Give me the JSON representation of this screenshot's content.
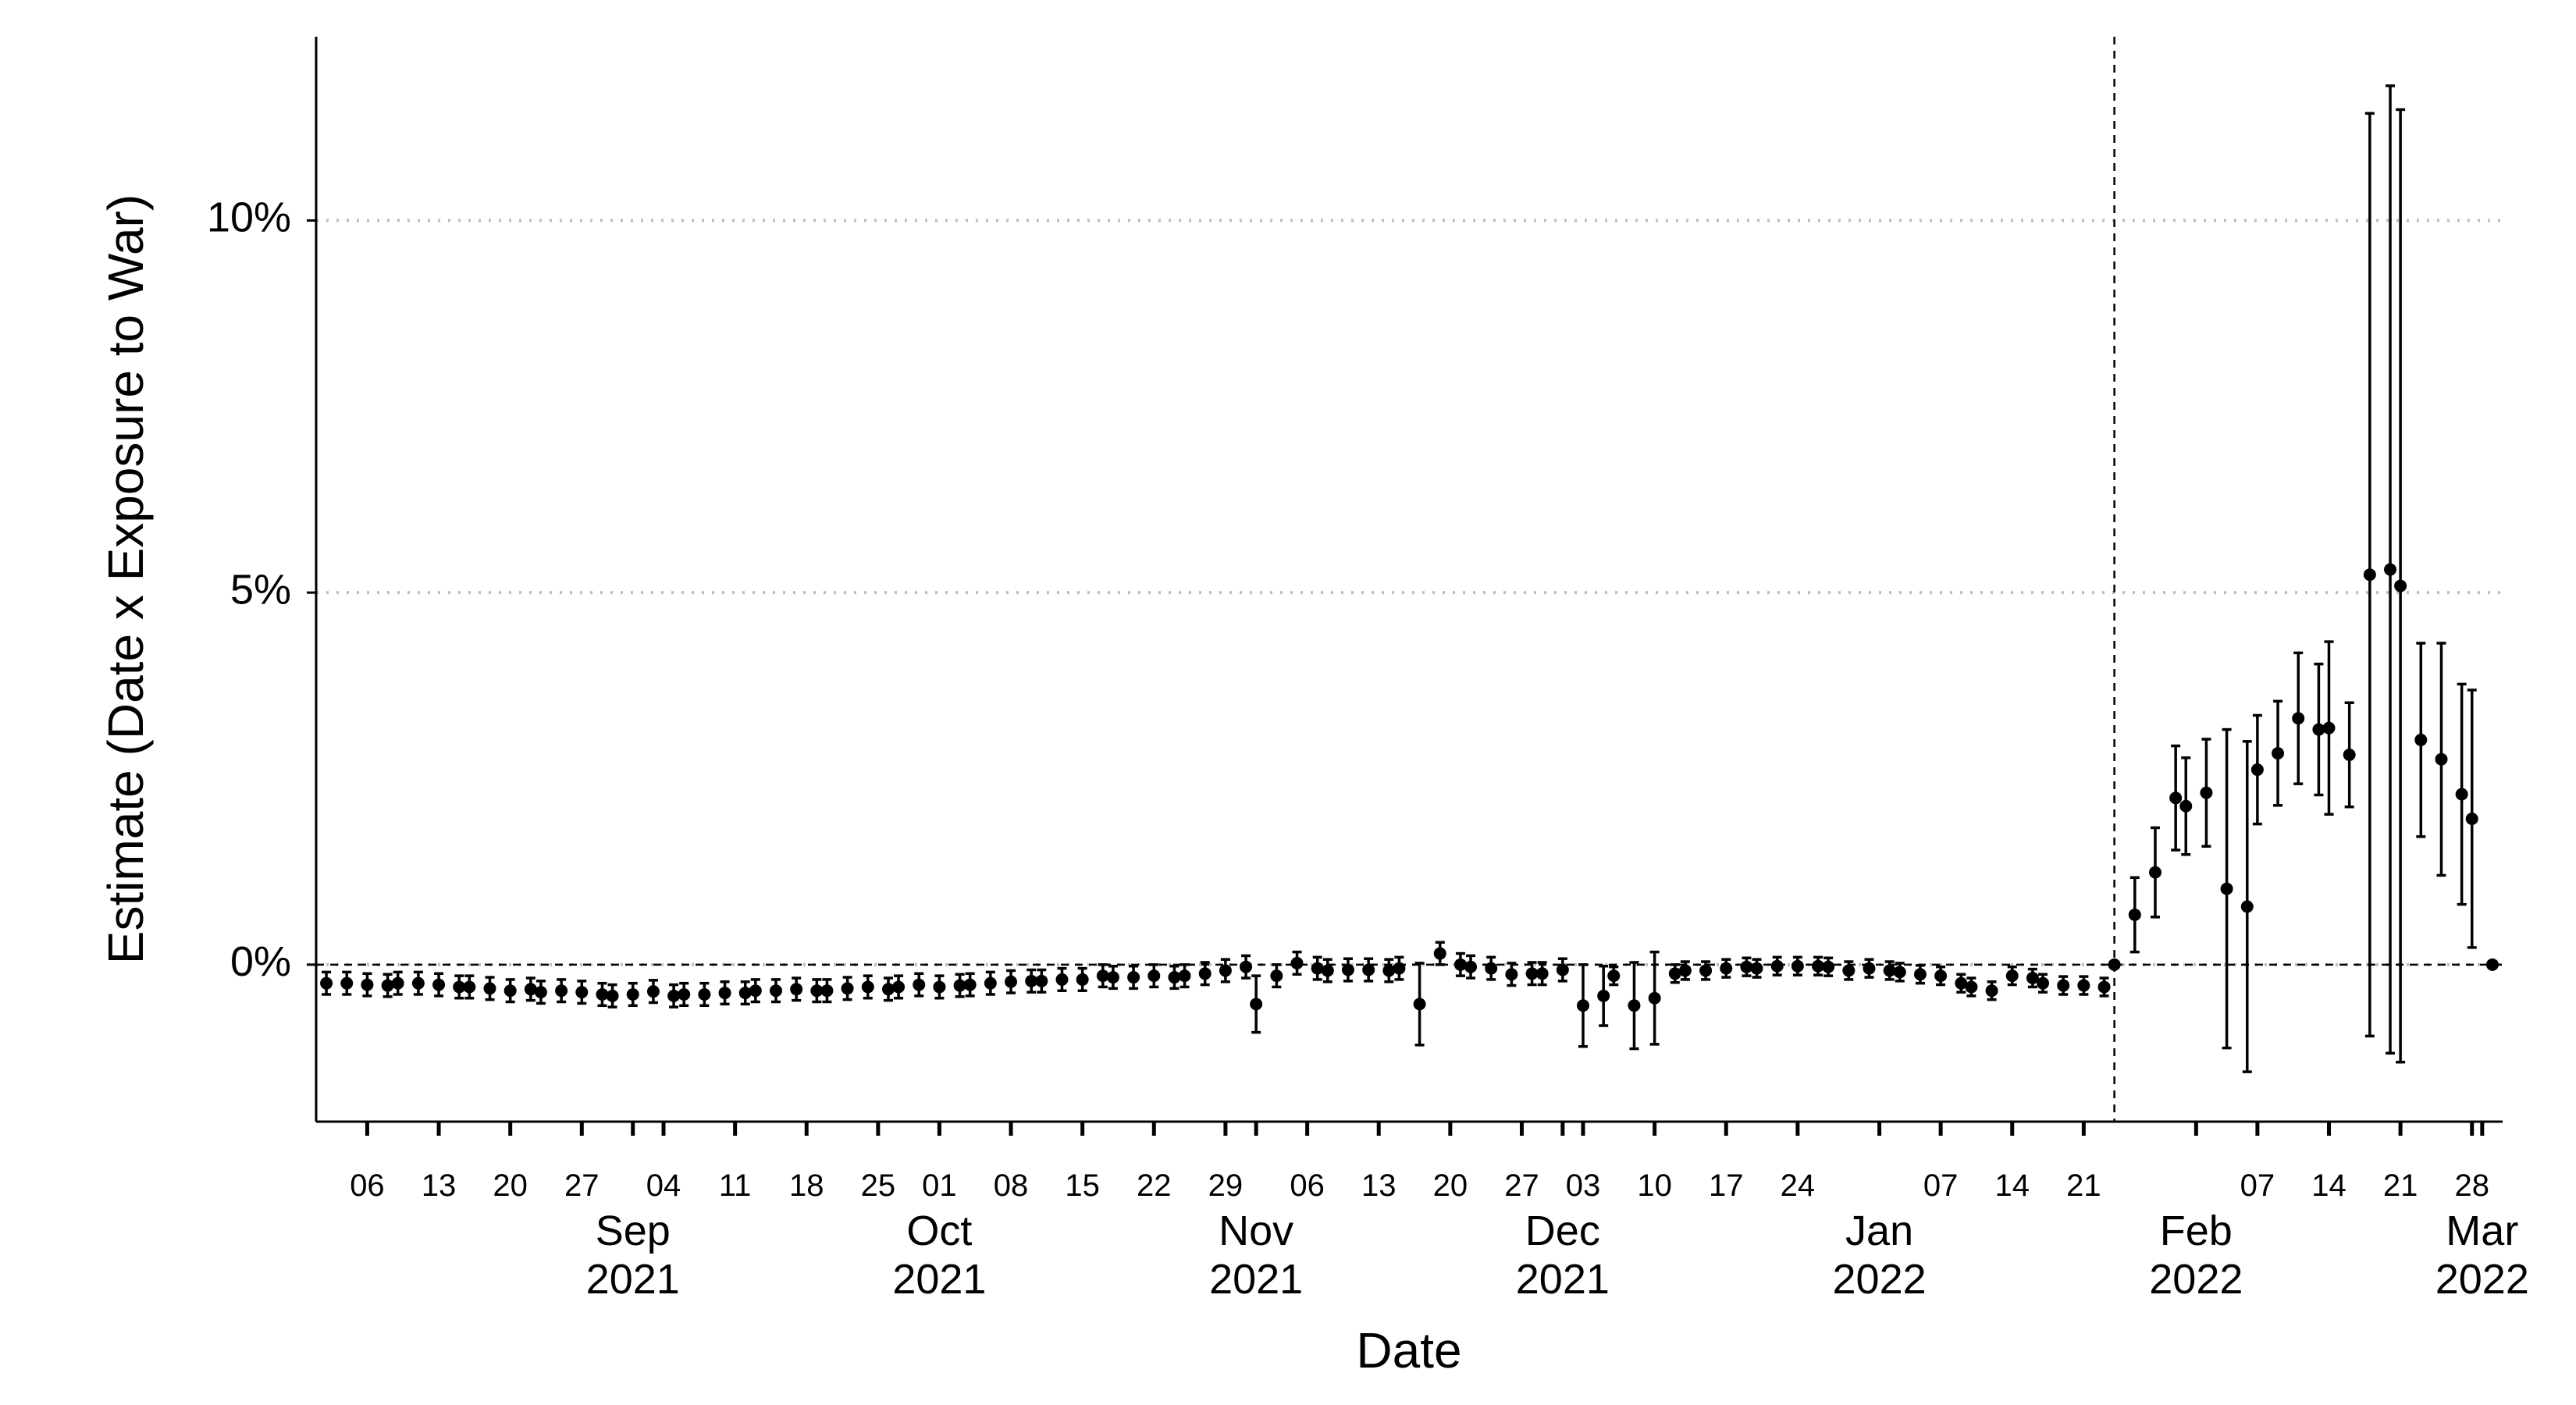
{
  "chart_data": {
    "type": "errorbar",
    "y_label": "Estimate (Date x Exposure to War)",
    "x_label": "Date",
    "x": [
      "2021-08-02",
      "2021-08-04",
      "2021-08-06",
      "2021-08-08",
      "2021-08-09",
      "2021-08-11",
      "2021-08-13",
      "2021-08-15",
      "2021-08-16",
      "2021-08-18",
      "2021-08-20",
      "2021-08-22",
      "2021-08-23",
      "2021-08-25",
      "2021-08-27",
      "2021-08-29",
      "2021-08-30",
      "2021-09-01",
      "2021-09-03",
      "2021-09-05",
      "2021-09-06",
      "2021-09-08",
      "2021-09-10",
      "2021-09-12",
      "2021-09-13",
      "2021-09-15",
      "2021-09-17",
      "2021-09-19",
      "2021-09-20",
      "2021-09-22",
      "2021-09-24",
      "2021-09-26",
      "2021-09-27",
      "2021-09-29",
      "2021-10-01",
      "2021-10-03",
      "2021-10-04",
      "2021-10-06",
      "2021-10-08",
      "2021-10-10",
      "2021-10-11",
      "2021-10-13",
      "2021-10-15",
      "2021-10-17",
      "2021-10-18",
      "2021-10-20",
      "2021-10-22",
      "2021-10-24",
      "2021-10-25",
      "2021-10-27",
      "2021-10-29",
      "2021-10-31",
      "2021-11-01",
      "2021-11-03",
      "2021-11-05",
      "2021-11-07",
      "2021-11-08",
      "2021-11-10",
      "2021-11-12",
      "2021-11-14",
      "2021-11-15",
      "2021-11-17",
      "2021-11-19",
      "2021-11-21",
      "2021-11-22",
      "2021-11-24",
      "2021-11-26",
      "2021-11-28",
      "2021-11-29",
      "2021-12-01",
      "2021-12-03",
      "2021-12-05",
      "2021-12-06",
      "2021-12-08",
      "2021-12-10",
      "2021-12-12",
      "2021-12-13",
      "2021-12-15",
      "2021-12-17",
      "2021-12-19",
      "2021-12-20",
      "2021-12-22",
      "2021-12-24",
      "2021-12-26",
      "2021-12-27",
      "2021-12-29",
      "2021-12-31",
      "2022-01-02",
      "2022-01-03",
      "2022-01-05",
      "2022-01-07",
      "2022-01-09",
      "2022-01-10",
      "2022-01-12",
      "2022-01-14",
      "2022-01-16",
      "2022-01-17",
      "2022-01-19",
      "2022-01-21",
      "2022-01-23",
      "2022-01-24",
      "2022-01-26",
      "2022-01-28",
      "2022-01-30",
      "2022-01-31",
      "2022-02-02",
      "2022-02-04",
      "2022-02-06",
      "2022-02-07",
      "2022-02-09",
      "2022-02-11",
      "2022-02-13",
      "2022-02-14",
      "2022-02-16",
      "2022-02-18",
      "2022-02-20",
      "2022-02-21",
      "2022-02-23",
      "2022-02-25",
      "2022-02-27",
      "2022-02-28",
      "2022-03-02"
    ],
    "values": [
      -0.25,
      -0.25,
      -0.27,
      -0.28,
      -0.25,
      -0.25,
      -0.27,
      -0.3,
      -0.3,
      -0.32,
      -0.35,
      -0.33,
      -0.37,
      -0.35,
      -0.37,
      -0.4,
      -0.42,
      -0.4,
      -0.36,
      -0.42,
      -0.4,
      -0.4,
      -0.38,
      -0.38,
      -0.35,
      -0.35,
      -0.33,
      -0.35,
      -0.35,
      -0.32,
      -0.3,
      -0.33,
      -0.3,
      -0.27,
      -0.3,
      -0.28,
      -0.27,
      -0.25,
      -0.23,
      -0.22,
      -0.22,
      -0.2,
      -0.2,
      -0.15,
      -0.17,
      -0.17,
      -0.15,
      -0.17,
      -0.15,
      -0.12,
      -0.08,
      -0.03,
      -0.53,
      -0.15,
      0.02,
      -0.05,
      -0.08,
      -0.07,
      -0.07,
      -0.08,
      -0.05,
      -0.53,
      0.15,
      0.0,
      -0.03,
      -0.05,
      -0.13,
      -0.12,
      -0.12,
      -0.07,
      -0.55,
      -0.42,
      -0.15,
      -0.55,
      -0.45,
      -0.12,
      -0.08,
      -0.08,
      -0.05,
      -0.03,
      -0.05,
      -0.02,
      -0.02,
      -0.02,
      -0.03,
      -0.08,
      -0.05,
      -0.08,
      -0.1,
      -0.13,
      -0.15,
      -0.25,
      -0.3,
      -0.35,
      -0.15,
      -0.18,
      -0.25,
      -0.28,
      -0.28,
      -0.3,
      0,
      0.67,
      1.24,
      2.24,
      2.13,
      2.31,
      1.02,
      0.78,
      2.62,
      2.84,
      3.31,
      3.16,
      3.18,
      2.82,
      5.24,
      5.31,
      5.09,
      3.02,
      2.76,
      2.29,
      1.96,
      0
    ],
    "errors": [
      0.15,
      0.15,
      0.15,
      0.15,
      0.15,
      0.15,
      0.15,
      0.15,
      0.15,
      0.15,
      0.15,
      0.15,
      0.15,
      0.15,
      0.15,
      0.15,
      0.15,
      0.15,
      0.15,
      0.15,
      0.15,
      0.15,
      0.15,
      0.15,
      0.15,
      0.15,
      0.15,
      0.15,
      0.15,
      0.15,
      0.15,
      0.15,
      0.15,
      0.15,
      0.15,
      0.15,
      0.15,
      0.15,
      0.15,
      0.15,
      0.15,
      0.15,
      0.15,
      0.15,
      0.15,
      0.15,
      0.15,
      0.15,
      0.15,
      0.15,
      0.15,
      0.15,
      0.38,
      0.15,
      0.15,
      0.15,
      0.15,
      0.15,
      0.15,
      0.15,
      0.15,
      0.55,
      0.15,
      0.15,
      0.15,
      0.15,
      0.15,
      0.15,
      0.15,
      0.15,
      0.55,
      0.4,
      0.12,
      0.58,
      0.62,
      0.12,
      0.12,
      0.12,
      0.12,
      0.12,
      0.12,
      0.12,
      0.12,
      0.12,
      0.12,
      0.12,
      0.12,
      0.12,
      0.12,
      0.12,
      0.12,
      0.12,
      0.12,
      0.12,
      0.12,
      0.12,
      0.12,
      0.12,
      0.12,
      0.12,
      0,
      0.5,
      0.6,
      0.7,
      0.65,
      0.72,
      2.14,
      2.22,
      0.73,
      0.7,
      0.88,
      0.88,
      1.16,
      0.7,
      6.2,
      6.5,
      6.4,
      1.3,
      1.56,
      1.48,
      1.73,
      0
    ],
    "color": "#000000",
    "xlim": [
      "2021-08-01",
      "2022-03-03"
    ],
    "ylim": [
      -2.11,
      12.47
    ],
    "yticks": [
      {
        "value": 0,
        "label": "0%"
      },
      {
        "value": 5,
        "label": "5%"
      },
      {
        "value": 10,
        "label": "10%"
      }
    ],
    "xticks": [
      {
        "value": "2021-08-06",
        "label": "06"
      },
      {
        "value": "2021-08-13",
        "label": "13"
      },
      {
        "value": "2021-08-20",
        "label": "20"
      },
      {
        "value": "2021-08-27",
        "label": "27"
      },
      {
        "value": "2021-09-04",
        "label": "04"
      },
      {
        "value": "2021-09-11",
        "label": "11"
      },
      {
        "value": "2021-09-18",
        "label": "18"
      },
      {
        "value": "2021-09-25",
        "label": "25"
      },
      {
        "value": "2021-10-01",
        "label": "01"
      },
      {
        "value": "2021-10-08",
        "label": "08"
      },
      {
        "value": "2021-10-15",
        "label": "15"
      },
      {
        "value": "2021-10-22",
        "label": "22"
      },
      {
        "value": "2021-10-29",
        "label": "29"
      },
      {
        "value": "2021-11-06",
        "label": "06"
      },
      {
        "value": "2021-11-13",
        "label": "13"
      },
      {
        "value": "2021-11-20",
        "label": "20"
      },
      {
        "value": "2021-11-27",
        "label": "27"
      },
      {
        "value": "2021-12-03",
        "label": "03"
      },
      {
        "value": "2021-12-10",
        "label": "10"
      },
      {
        "value": "2021-12-17",
        "label": "17"
      },
      {
        "value": "2021-12-24",
        "label": "24"
      },
      {
        "value": "2022-01-07",
        "label": "07"
      },
      {
        "value": "2022-01-14",
        "label": "14"
      },
      {
        "value": "2022-01-21",
        "label": "21"
      },
      {
        "value": "2022-02-07",
        "label": "07"
      },
      {
        "value": "2022-02-14",
        "label": "14"
      },
      {
        "value": "2022-02-21",
        "label": "21"
      },
      {
        "value": "2022-02-28",
        "label": "28"
      }
    ],
    "month_ticks": [
      {
        "value": "2021-09-01",
        "label": "Sep\n2021"
      },
      {
        "value": "2021-10-01",
        "label": "Oct\n2021"
      },
      {
        "value": "2021-11-01",
        "label": "Nov\n2021"
      },
      {
        "value": "2021-12-01",
        "label": "Dec\n2021"
      },
      {
        "value": "2022-01-01",
        "label": "Jan\n2022"
      },
      {
        "value": "2022-02-01",
        "label": "Feb\n2022"
      },
      {
        "value": "2022-03-01",
        "label": "Mar\n2022"
      }
    ],
    "grid": true,
    "reference_lines": {
      "y": 0,
      "x": "2022-01-24"
    }
  }
}
